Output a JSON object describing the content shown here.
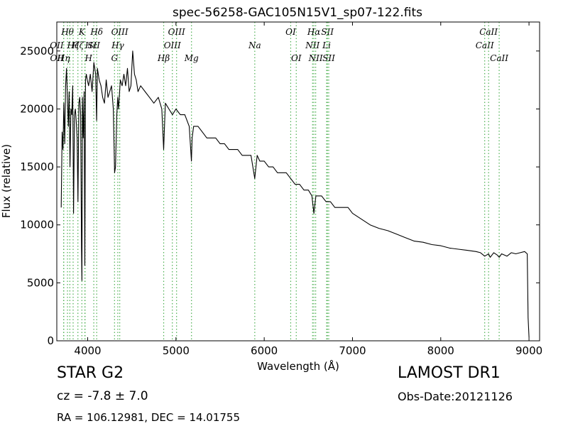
{
  "chart_data": {
    "type": "line",
    "title": "spec-56258-GAC105N15V1_sp07-122.fits",
    "xlabel": "Wavelength (Å)",
    "ylabel": "Flux (relative)",
    "xlim": [
      3650,
      9120
    ],
    "ylim": [
      0,
      27500
    ],
    "grid": false,
    "xticks": [
      4000,
      5000,
      6000,
      7000,
      8000,
      9000
    ],
    "yticks": [
      0,
      5000,
      10000,
      15000,
      20000,
      25000
    ],
    "series": [
      {
        "color": "#000000",
        "x": [
          3700,
          3710,
          3720,
          3730,
          3740,
          3750,
          3760,
          3770,
          3780,
          3790,
          3800,
          3810,
          3820,
          3830,
          3840,
          3850,
          3860,
          3870,
          3880,
          3890,
          3900,
          3910,
          3920,
          3930,
          3935,
          3940,
          3950,
          3960,
          3968,
          3975,
          3985,
          3995,
          4010,
          4030,
          4050,
          4070,
          4090,
          4101,
          4110,
          4130,
          4150,
          4170,
          4190,
          4210,
          4230,
          4250,
          4270,
          4290,
          4305,
          4315,
          4330,
          4340,
          4350,
          4370,
          4390,
          4410,
          4430,
          4450,
          4470,
          4490,
          4510,
          4530,
          4550,
          4570,
          4600,
          4650,
          4700,
          4750,
          4800,
          4840,
          4861,
          4880,
          4920,
          4960,
          5000,
          5050,
          5100,
          5150,
          5167,
          5175,
          5183,
          5200,
          5250,
          5300,
          5350,
          5400,
          5450,
          5500,
          5550,
          5600,
          5650,
          5700,
          5750,
          5800,
          5850,
          5893,
          5920,
          5950,
          6000,
          6050,
          6100,
          6150,
          6200,
          6250,
          6300,
          6350,
          6400,
          6450,
          6500,
          6540,
          6563,
          6585,
          6620,
          6650,
          6700,
          6750,
          6800,
          6850,
          6870,
          6900,
          6950,
          7000,
          7100,
          7200,
          7300,
          7400,
          7500,
          7600,
          7700,
          7800,
          7900,
          8000,
          8100,
          8200,
          8300,
          8400,
          8450,
          8498,
          8520,
          8542,
          8560,
          8600,
          8640,
          8662,
          8690,
          8750,
          8800,
          8850,
          8900,
          8950,
          8980,
          8990,
          9000
        ],
        "values": [
          11500,
          18000,
          16500,
          20500,
          17000,
          22000,
          23500,
          21000,
          18500,
          21500,
          15000,
          20000,
          19500,
          22000,
          11000,
          19500,
          20000,
          19000,
          17500,
          12000,
          20500,
          21000,
          19500,
          8000,
          5200,
          21000,
          17500,
          21500,
          6500,
          22500,
          23000,
          22500,
          22000,
          23000,
          21500,
          24000,
          23000,
          19000,
          23500,
          22500,
          22000,
          21000,
          20500,
          22500,
          21000,
          21500,
          22000,
          20000,
          14500,
          15000,
          19500,
          21000,
          20000,
          22500,
          22000,
          23000,
          22000,
          23500,
          21500,
          22000,
          25000,
          23000,
          22500,
          21500,
          22000,
          21500,
          21000,
          20500,
          21000,
          20000,
          16500,
          20500,
          20000,
          19500,
          20000,
          19500,
          19500,
          18500,
          16500,
          15500,
          17500,
          18500,
          18500,
          18000,
          17500,
          17500,
          17500,
          17000,
          17000,
          16500,
          16500,
          16500,
          16000,
          16000,
          16000,
          14000,
          16000,
          15500,
          15500,
          15000,
          15000,
          14500,
          14500,
          14500,
          14000,
          13500,
          13500,
          13000,
          13000,
          12500,
          11000,
          12500,
          12500,
          12500,
          12000,
          12000,
          11500,
          11500,
          11500,
          11500,
          11500,
          11000,
          10500,
          10000,
          9700,
          9500,
          9200,
          8900,
          8600,
          8500,
          8300,
          8200,
          8000,
          7900,
          7800,
          7700,
          7600,
          7300,
          7400,
          7500,
          7200,
          7600,
          7400,
          7200,
          7500,
          7300,
          7600,
          7500,
          7600,
          7700,
          7500,
          2000,
          300
        ]
      }
    ],
    "line_markers": [
      {
        "w": 3727,
        "label": "OII",
        "row": 2,
        "align": "end"
      },
      {
        "w": 3729,
        "label": "OII",
        "row": 3,
        "align": "end"
      },
      {
        "w": 3771,
        "label": "Hθ",
        "row": 1,
        "align": "middle"
      },
      {
        "w": 3798,
        "label": "Hη",
        "row": 3,
        "align": "end"
      },
      {
        "w": 3835,
        "label": "Hζ",
        "row": 2,
        "align": "middle"
      },
      {
        "w": 3889,
        "label": "Hζ",
        "row": 2,
        "align": "middle"
      },
      {
        "w": 3934,
        "label": "K",
        "row": 1,
        "align": "middle"
      },
      {
        "w": 3968,
        "label": "H",
        "row": 3,
        "align": "start"
      },
      {
        "w": 3970,
        "label": "Hε",
        "row": 2,
        "align": "start"
      },
      {
        "w": 4069,
        "label": "SII",
        "row": 2,
        "align": "middle"
      },
      {
        "w": 4102,
        "label": "Hδ",
        "row": 1,
        "align": "middle"
      },
      {
        "w": 4304,
        "label": "G",
        "row": 3,
        "align": "middle"
      },
      {
        "w": 4341,
        "label": "Hγ",
        "row": 2,
        "align": "middle"
      },
      {
        "w": 4363,
        "label": "OIII",
        "row": 1,
        "align": "middle"
      },
      {
        "w": 4861,
        "label": "Hβ",
        "row": 3,
        "align": "middle"
      },
      {
        "w": 4959,
        "label": "OIII",
        "row": 2,
        "align": "middle"
      },
      {
        "w": 5007,
        "label": "OIII",
        "row": 1,
        "align": "middle"
      },
      {
        "w": 5176,
        "label": "Mg",
        "row": 3,
        "align": "middle"
      },
      {
        "w": 5893,
        "label": "Na",
        "row": 2,
        "align": "middle"
      },
      {
        "w": 6300,
        "label": "OI",
        "row": 1,
        "align": "middle"
      },
      {
        "w": 6363,
        "label": "OI",
        "row": 3,
        "align": "middle"
      },
      {
        "w": 6548,
        "label": "NII",
        "row": 2,
        "align": "middle"
      },
      {
        "w": 6563,
        "label": "Hα",
        "row": 1,
        "align": "middle"
      },
      {
        "w": 6583,
        "label": "NII",
        "row": 3,
        "align": "middle"
      },
      {
        "w": 6707,
        "label": "Li",
        "row": 2,
        "align": "middle"
      },
      {
        "w": 6716,
        "label": "SII",
        "row": 1,
        "align": "middle"
      },
      {
        "w": 6731,
        "label": "SII",
        "row": 3,
        "align": "middle"
      },
      {
        "w": 8498,
        "label": "CaII",
        "row": 2,
        "align": "middle"
      },
      {
        "w": 8542,
        "label": "CaII",
        "row": 1,
        "align": "middle"
      },
      {
        "w": 8662,
        "label": "CaII",
        "row": 3,
        "align": "middle"
      }
    ]
  },
  "footer": {
    "class_label": "STAR   G2",
    "cz_label": "cz = -7.8 ± 7.0",
    "radec_label": "RA = 106.12981, DEC = 14.01755",
    "survey_label": "LAMOST DR1",
    "obsdate_label": "Obs-Date:20121126"
  },
  "colors": {
    "spectrum": "#000000",
    "marker_line": "#4caf50",
    "background": "#ffffff"
  }
}
